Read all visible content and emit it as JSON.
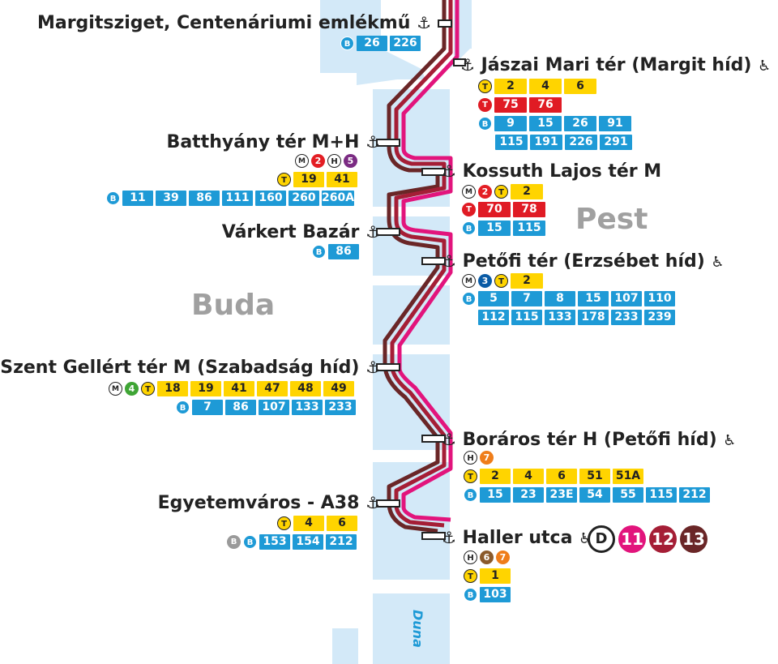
{
  "colors": {
    "water": "#d3e9f8",
    "line_11": "#e2147c",
    "line_12": "#a51e36",
    "line_13": "#6a2627",
    "tram": "#ffd400",
    "bus": "#1e9ad6",
    "trolleybus": "#e01b24",
    "metro_2": "#e31e24",
    "metro_3": "#0a5ba5",
    "metro_4": "#3fa535",
    "hev_5": "#7b2b83",
    "hev_6": "#8a5a2b",
    "hev_7": "#ef7d1a",
    "city_label": "#a0a0a0"
  },
  "labels": {
    "pest": "Pest",
    "buda": "Buda",
    "river": "Duna"
  },
  "legend": {
    "d_logo": "D",
    "lines": [
      "11",
      "12",
      "13"
    ]
  },
  "icons": {
    "boat_stop": "ship-anchor-icon",
    "wheelchair": "wheelchair-icon",
    "tram": "tram-icon",
    "bus": "bus-icon",
    "trolleybus": "trolleybus-icon",
    "metro": "metro-icon",
    "hev": "hev-icon"
  },
  "stations": [
    {
      "name": "Margitsziget, Centenáriumi emlékmű",
      "side": "buda",
      "accessible": false,
      "bus": [
        "26",
        "226"
      ]
    },
    {
      "name": "Jászai Mari tér (Margit híd)",
      "side": "pest",
      "accessible": true,
      "tram": [
        "2",
        "4",
        "6"
      ],
      "trolleybus": [
        "75",
        "76"
      ],
      "bus": [
        "9",
        "15",
        "26",
        "91",
        "115",
        "191",
        "226",
        "291"
      ]
    },
    {
      "name": "Batthyány tér M+H",
      "side": "buda",
      "accessible": false,
      "metro": [
        "2"
      ],
      "hev": [
        "5"
      ],
      "tram": [
        "19",
        "41"
      ],
      "bus": [
        "11",
        "39",
        "86",
        "111",
        "160",
        "260",
        "260A"
      ]
    },
    {
      "name": "Kossuth Lajos tér M",
      "side": "pest",
      "accessible": false,
      "metro": [
        "2"
      ],
      "tram": [
        "2"
      ],
      "trolleybus": [
        "70",
        "78"
      ],
      "bus": [
        "15",
        "115"
      ]
    },
    {
      "name": "Várkert Bazár",
      "side": "buda",
      "accessible": false,
      "bus": [
        "86"
      ]
    },
    {
      "name": "Petőfi tér (Erzsébet híd)",
      "side": "pest",
      "accessible": true,
      "metro": [
        "3"
      ],
      "tram": [
        "2"
      ],
      "bus": [
        "5",
        "7",
        "8",
        "15",
        "107",
        "110",
        "112",
        "115",
        "133",
        "178",
        "233",
        "239"
      ]
    },
    {
      "name": "Szent Gellért tér M (Szabadság híd)",
      "side": "buda",
      "accessible": false,
      "metro": [
        "4"
      ],
      "tram": [
        "18",
        "19",
        "41",
        "47",
        "48",
        "49"
      ],
      "bus": [
        "7",
        "86",
        "107",
        "133",
        "233"
      ]
    },
    {
      "name": "Boráros tér H (Petőfi híd)",
      "side": "pest",
      "accessible": true,
      "hev": [
        "7"
      ],
      "tram": [
        "2",
        "4",
        "6",
        "51",
        "51A"
      ],
      "bus": [
        "15",
        "23",
        "23E",
        "54",
        "55",
        "115",
        "212"
      ]
    },
    {
      "name": "Egyetemváros - A38",
      "side": "buda",
      "accessible": false,
      "tram": [
        "4",
        "6"
      ],
      "bus": [
        "153",
        "154",
        "212"
      ],
      "other_icon": "grey-bus-icon"
    },
    {
      "name": "Haller utca",
      "side": "pest",
      "accessible": true,
      "hev": [
        "6",
        "7"
      ],
      "tram": [
        "1"
      ],
      "bus": [
        "103"
      ]
    }
  ]
}
